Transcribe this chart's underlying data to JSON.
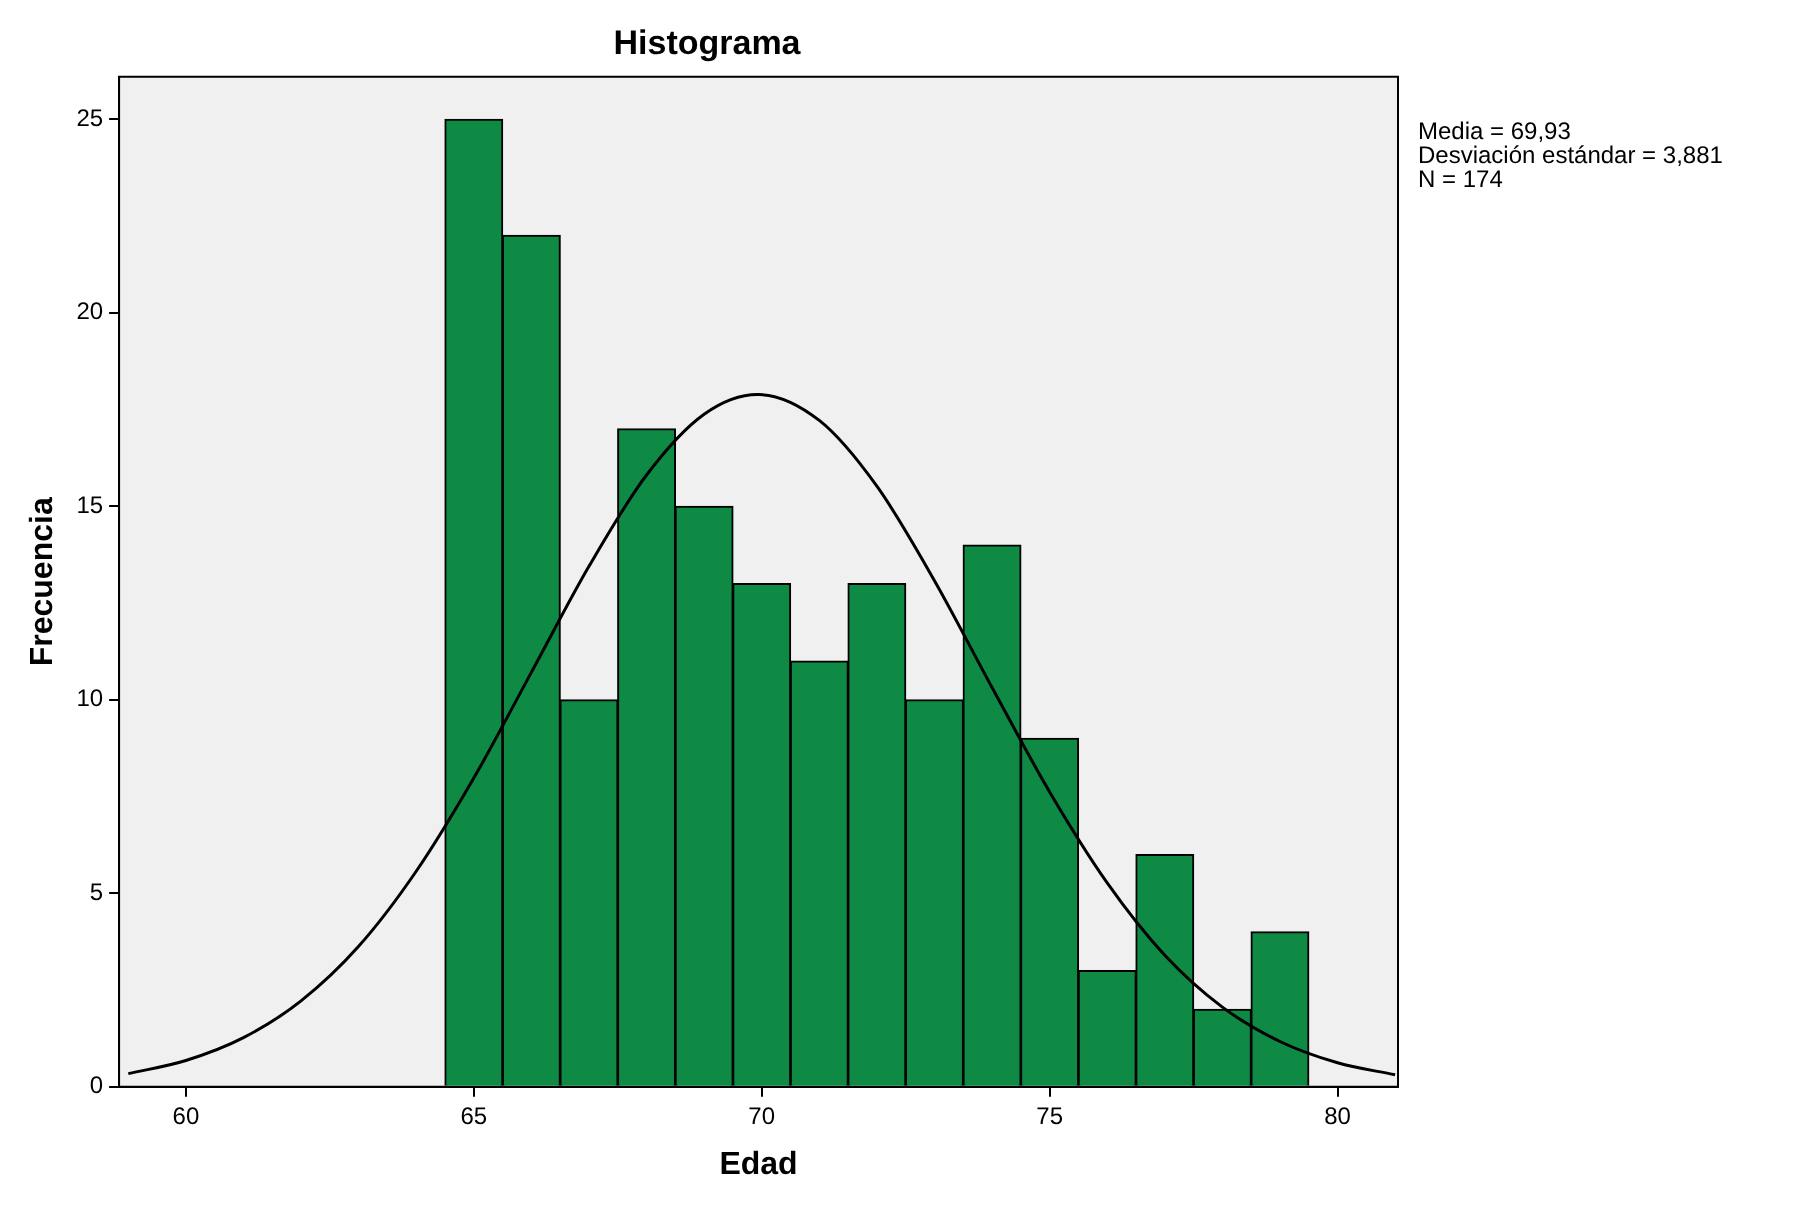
{
  "chart_data": {
    "type": "histogram",
    "title": "Histograma",
    "xlabel": "Edad",
    "ylabel": "Frecuencia",
    "bins": [
      64.5,
      65.5,
      66.5,
      67.5,
      68.5,
      69.5,
      70.5,
      71.5,
      72.5,
      73.5,
      74.5,
      75.5,
      76.5,
      77.5,
      78.5,
      79.5
    ],
    "values": [
      25,
      22,
      10,
      17,
      15,
      13,
      11,
      13,
      10,
      14,
      9,
      3,
      6,
      2,
      4
    ],
    "color": "#0e8a44",
    "series": [
      {
        "type": "line",
        "color": "#000000",
        "x": [
          59,
          60,
          61,
          62,
          63,
          64,
          65,
          66,
          67,
          68,
          69,
          69.93,
          71,
          72,
          73,
          74,
          75,
          76,
          77,
          78,
          79,
          80,
          81
        ],
        "values": [
          0.34,
          0.68,
          1.27,
          2.22,
          3.63,
          5.57,
          7.98,
          10.71,
          13.45,
          15.81,
          17.38,
          17.89,
          17.22,
          15.52,
          13.08,
          10.32,
          7.62,
          5.27,
          3.4,
          2.06,
          1.17,
          0.62,
          0.31
        ]
      }
    ],
    "xlim": [
      58.84,
      81.05
    ],
    "xticks": [
      60,
      65,
      70,
      75,
      80
    ],
    "ylim": [
      0,
      26.1
    ],
    "yticks": [
      0,
      5,
      10,
      15,
      20,
      25
    ],
    "marker": "none",
    "annotations": [
      "Media = 69,93",
      "Desviación estándar = 3,881",
      "N = 174"
    ]
  }
}
